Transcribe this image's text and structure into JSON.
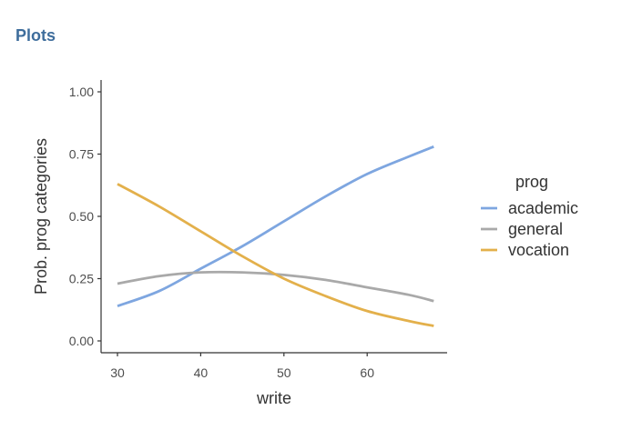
{
  "panel": {
    "title": "Plots"
  },
  "chart_data": {
    "type": "line",
    "xlabel": "write",
    "ylabel": "Prob. prog categories",
    "xlim": [
      30,
      68
    ],
    "ylim": [
      0,
      1
    ],
    "x_ticks": [
      30,
      40,
      50,
      60
    ],
    "y_ticks": [
      "0.00",
      "0.25",
      "0.50",
      "0.75",
      "1.00"
    ],
    "y_tick_values": [
      0,
      0.25,
      0.5,
      0.75,
      1.0
    ],
    "legend": {
      "title": "prog",
      "placement": "right"
    },
    "grid": false,
    "series": [
      {
        "name": "academic",
        "color": "#7ea6e0",
        "x": [
          30,
          35,
          40,
          45,
          50,
          55,
          60,
          65,
          68
        ],
        "values": [
          0.14,
          0.2,
          0.29,
          0.38,
          0.48,
          0.58,
          0.67,
          0.74,
          0.78
        ]
      },
      {
        "name": "general",
        "color": "#a9a9a9",
        "x": [
          30,
          35,
          40,
          45,
          50,
          55,
          60,
          65,
          68
        ],
        "values": [
          0.23,
          0.26,
          0.275,
          0.275,
          0.265,
          0.245,
          0.215,
          0.185,
          0.16
        ]
      },
      {
        "name": "vocation",
        "color": "#e3b04b",
        "x": [
          30,
          35,
          40,
          45,
          50,
          55,
          60,
          65,
          68
        ],
        "values": [
          0.63,
          0.54,
          0.44,
          0.34,
          0.25,
          0.18,
          0.12,
          0.08,
          0.06
        ]
      }
    ]
  }
}
